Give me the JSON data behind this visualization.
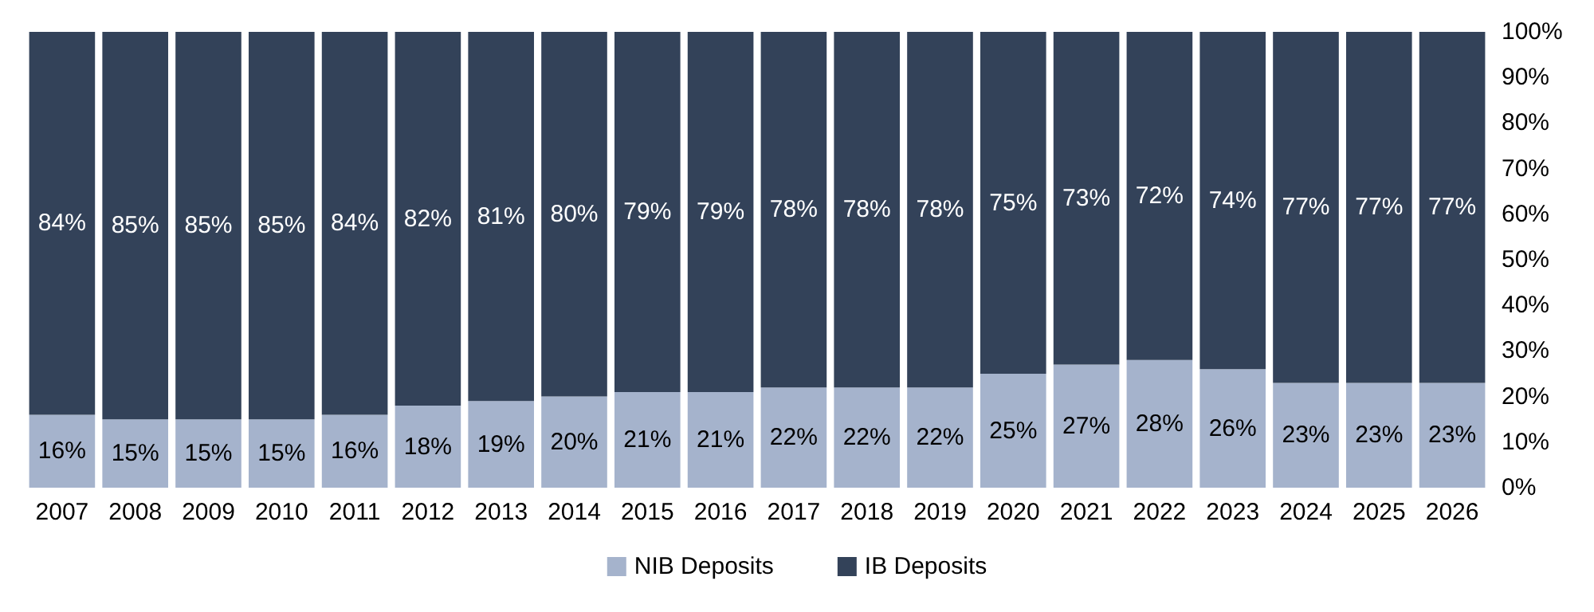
{
  "chart_data": {
    "type": "bar",
    "stacked": true,
    "categories": [
      "2007",
      "2008",
      "2009",
      "2010",
      "2011",
      "2012",
      "2013",
      "2014",
      "2015",
      "2016",
      "2017",
      "2018",
      "2019",
      "2020",
      "2021",
      "2022",
      "2023",
      "2024",
      "2025",
      "2026"
    ],
    "series": [
      {
        "name": "NIB Deposits",
        "color": "#a5b3cc",
        "values": [
          16,
          15,
          15,
          15,
          16,
          18,
          19,
          20,
          21,
          21,
          22,
          22,
          22,
          25,
          27,
          28,
          26,
          23,
          23,
          23
        ],
        "value_labels": [
          "16%",
          "15%",
          "15%",
          "15%",
          "16%",
          "18%",
          "19%",
          "20%",
          "21%",
          "21%",
          "22%",
          "22%",
          "22%",
          "25%",
          "27%",
          "28%",
          "26%",
          "23%",
          "23%",
          "23%"
        ]
      },
      {
        "name": "IB Deposits",
        "color": "#334259",
        "values": [
          84,
          85,
          85,
          85,
          84,
          82,
          81,
          80,
          79,
          79,
          78,
          78,
          78,
          75,
          73,
          72,
          74,
          77,
          77,
          77
        ],
        "value_labels": [
          "84%",
          "85%",
          "85%",
          "85%",
          "84%",
          "82%",
          "81%",
          "80%",
          "79%",
          "79%",
          "78%",
          "78%",
          "78%",
          "75%",
          "73%",
          "72%",
          "74%",
          "77%",
          "77%",
          "77%"
        ]
      }
    ],
    "ylim": [
      0,
      100
    ],
    "yticks": [
      {
        "value": 0,
        "label": "0%"
      },
      {
        "value": 10,
        "label": "10%"
      },
      {
        "value": 20,
        "label": "20%"
      },
      {
        "value": 30,
        "label": "30%"
      },
      {
        "value": 40,
        "label": "40%"
      },
      {
        "value": 50,
        "label": "50%"
      },
      {
        "value": 60,
        "label": "60%"
      },
      {
        "value": 70,
        "label": "70%"
      },
      {
        "value": 80,
        "label": "80%"
      },
      {
        "value": 90,
        "label": "90%"
      },
      {
        "value": 100,
        "label": "100%"
      }
    ],
    "legend": "bottom"
  }
}
